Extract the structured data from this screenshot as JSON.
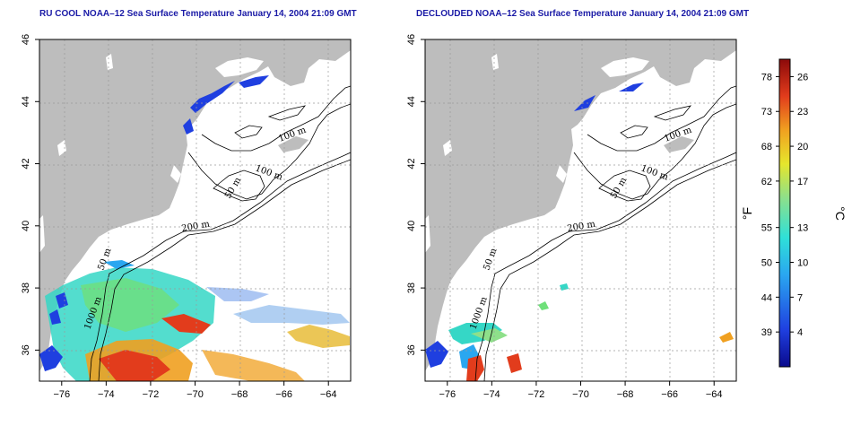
{
  "panels": [
    {
      "title": "RU COOL NOAA–12 Sea Surface Temperature January 14, 2004 21:09 GMT",
      "contour_labels": [
        "100 m",
        "100 m",
        "50 m",
        "200 m",
        "50 m",
        "1000 m"
      ]
    },
    {
      "title": "DECLOUDED NOAA–12 Sea Surface Temperature January 14, 2004 21:09 GMT",
      "contour_labels": [
        "100 m",
        "100 m",
        "50 m",
        "200 m",
        "50 m",
        "1000 m"
      ]
    }
  ],
  "axes": {
    "x_ticks": [
      "−76",
      "−74",
      "−72",
      "−70",
      "−68",
      "−66",
      "−64"
    ],
    "y_ticks": [
      "36",
      "38",
      "40",
      "42",
      "44",
      "46"
    ],
    "lon_range": [
      -77,
      -63
    ],
    "lat_range": [
      35,
      46
    ]
  },
  "colorbar": {
    "fahrenheit_ticks": [
      "78",
      "73",
      "68",
      "62",
      "55",
      "50",
      "44",
      "39"
    ],
    "celsius_ticks": [
      "26",
      "23",
      "20",
      "17",
      "13",
      "10",
      "7",
      "4"
    ],
    "fahrenheit_unit": "°F",
    "celsius_unit": "°C",
    "range_celsius": [
      1,
      27.5
    ],
    "colors": [
      "#0a0a8c",
      "#1f3fe0",
      "#2aa7f0",
      "#2fe0d8",
      "#8ee08a",
      "#e6e62c",
      "#f0a020",
      "#e23c1c",
      "#8c0a0a"
    ]
  },
  "map_colors": {
    "land": "#bdbdbd",
    "grid": "#9a9a9a"
  }
}
